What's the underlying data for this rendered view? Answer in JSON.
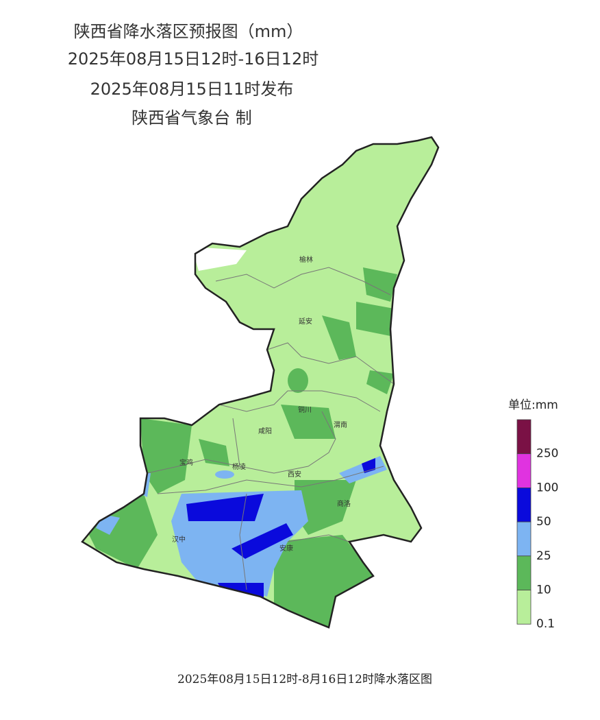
{
  "header": {
    "title": "陕西省降水落区预报图（mm）",
    "period": "2025年08月15日12时-16日12时",
    "issued": "2025年08月15日11时发布",
    "producer": "陕西省气象台 制"
  },
  "map": {
    "labels": [
      "榆林",
      "延安",
      "铜川",
      "渭南",
      "咸阳",
      "宝鸡",
      "杨凌",
      "西安",
      "商洛",
      "汉中",
      "安康"
    ]
  },
  "legend": {
    "title": "单位:mm",
    "labels": [
      "250",
      "100",
      "50",
      "25",
      "10",
      "0.1"
    ],
    "colors": [
      "#7a1145",
      "#e033e0",
      "#0a0adc",
      "#7db4f2",
      "#5cb85a",
      "#b8ee9a"
    ]
  },
  "footer": {
    "caption": "2025年08月15日12时-8月16日12时降水落区图"
  }
}
